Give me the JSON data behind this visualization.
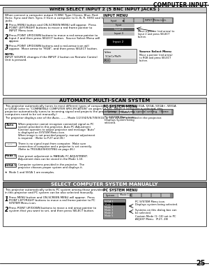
{
  "page_number": "25",
  "header_title": "COMPUTER INPUT",
  "background_color": "#ffffff",
  "header_line_color": "#000000",
  "section1_title": "WHEN SELECT INPUT 2 (5 BNC INPUT JACKS )",
  "section2_title": "AUTOMATIC MULTI-SCAN SYSTEM",
  "section3_title": "SELECT COMPUTER SYSTEM MANUALLY",
  "section1_bg": "#d0d0d0",
  "section3_bg": "#777777",
  "text_color": "#000000",
  "gray_light": "#e8e8e8",
  "gray_medium": "#c0c0c0",
  "gray_dark": "#888888",
  "gray_darker": "#666666",
  "black": "#000000",
  "white": "#ffffff",
  "page_bg": "#f5f5f5"
}
